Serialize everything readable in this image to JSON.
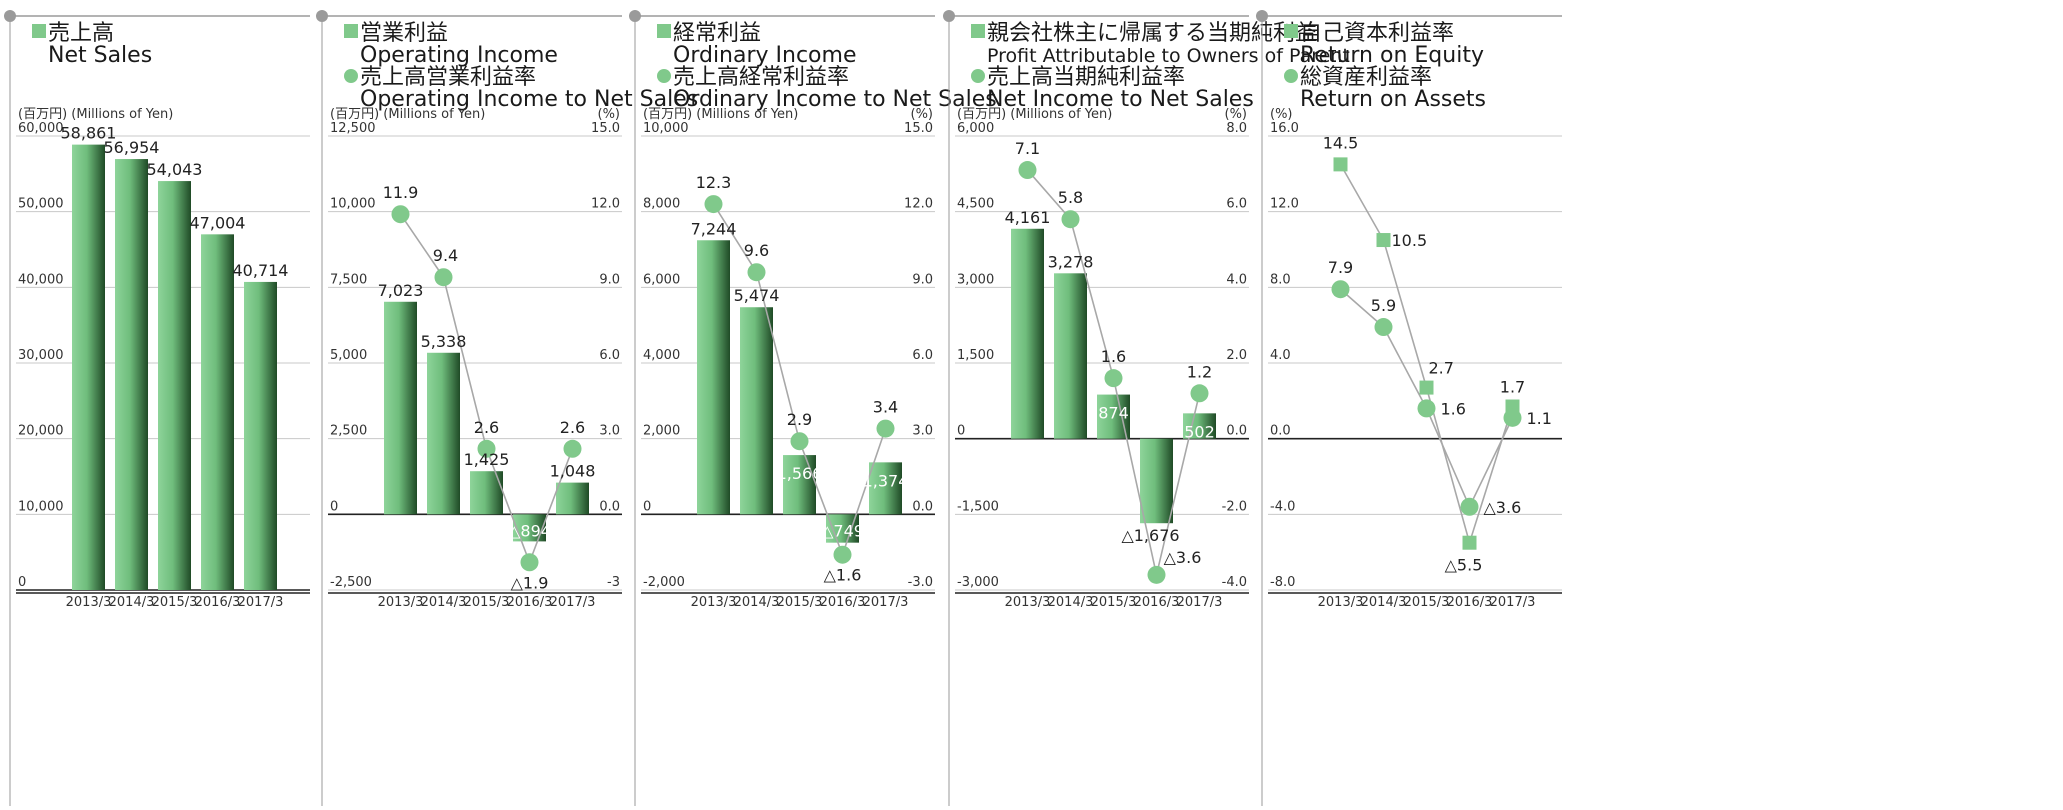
{
  "colors": {
    "bar_light": "#8ed49a",
    "bar_dark": "#1f4a26",
    "marker": "#80c98b",
    "line": "#a8a8a8",
    "grid": "#c8c8c8",
    "axis": "#222222"
  },
  "chart_data": [
    {
      "type": "bar",
      "title_lines": [
        "売上高",
        "Net Sales"
      ],
      "title_markers": [
        "square",
        ""
      ],
      "left_unit": "(百万円) (Millions of Yen)",
      "right_unit": "",
      "categories": [
        "2013/3",
        "2014/3",
        "2015/3",
        "2016/3",
        "2017/3"
      ],
      "left_axis": {
        "min": 0,
        "max": 60000,
        "ticks": [
          0,
          10000,
          20000,
          30000,
          40000,
          50000,
          60000
        ],
        "tick_labels": [
          "0",
          "10,000",
          "20,000",
          "30,000",
          "40,000",
          "50,000",
          "60,000"
        ]
      },
      "bars": {
        "values": [
          58861,
          56954,
          54043,
          47004,
          40714
        ],
        "labels": [
          "58,861",
          "56,954",
          "54,043",
          "47,004",
          "40,714"
        ]
      }
    },
    {
      "type": "bar+line",
      "title_lines": [
        "営業利益",
        "Operating Income",
        "売上高営業利益率",
        "Operating Income to Net Sales"
      ],
      "title_markers": [
        "square",
        "",
        "circle",
        ""
      ],
      "left_unit": "(百万円) (Millions of Yen)",
      "right_unit": "(%)",
      "categories": [
        "2013/3",
        "2014/3",
        "2015/3",
        "2016/3",
        "2017/3"
      ],
      "left_axis": {
        "min": -2500,
        "max": 12500,
        "ticks": [
          -2500,
          0,
          2500,
          5000,
          7500,
          10000,
          12500
        ],
        "tick_labels": [
          "-2,500",
          "0",
          "2,500",
          "5,000",
          "7,500",
          "10,000",
          "12,500"
        ]
      },
      "right_axis": {
        "min": -3,
        "max": 15,
        "ticks": [
          -3,
          0,
          3,
          6,
          9,
          12,
          15
        ],
        "tick_labels": [
          "-3",
          "0.0",
          "3.0",
          "6.0",
          "9.0",
          "12.0",
          "15.0"
        ]
      },
      "bars": {
        "values": [
          7023,
          5338,
          1425,
          -894,
          1048
        ],
        "labels": [
          "7,023",
          "5,338",
          "1,425",
          "△894",
          "1,048"
        ]
      },
      "lines": [
        {
          "marker": "circle",
          "values": [
            11.9,
            9.4,
            2.6,
            -1.9,
            2.6
          ],
          "labels": [
            "11.9",
            "9.4",
            "2.6",
            "△1.9",
            "2.6"
          ]
        }
      ]
    },
    {
      "type": "bar+line",
      "title_lines": [
        "経常利益",
        "Ordinary Income",
        "売上高経常利益率",
        "Ordinary Income to Net Sales"
      ],
      "title_markers": [
        "square",
        "",
        "circle",
        ""
      ],
      "left_unit": "(百万円) (Millions of Yen)",
      "right_unit": "(%)",
      "categories": [
        "2013/3",
        "2014/3",
        "2015/3",
        "2016/3",
        "2017/3"
      ],
      "left_axis": {
        "min": -2000,
        "max": 10000,
        "ticks": [
          -2000,
          0,
          2000,
          4000,
          6000,
          8000,
          10000
        ],
        "tick_labels": [
          "-2,000",
          "0",
          "2,000",
          "4,000",
          "6,000",
          "8,000",
          "10,000"
        ]
      },
      "right_axis": {
        "min": -3,
        "max": 15,
        "ticks": [
          -3,
          0,
          3,
          6,
          9,
          12,
          15
        ],
        "tick_labels": [
          "-3.0",
          "0.0",
          "3.0",
          "6.0",
          "9.0",
          "12.0",
          "15.0"
        ]
      },
      "bars": {
        "values": [
          7244,
          5474,
          1566,
          -749,
          1374
        ],
        "labels": [
          "7,244",
          "5,474",
          "1,566",
          "△749",
          "1,374"
        ]
      },
      "lines": [
        {
          "marker": "circle",
          "values": [
            12.3,
            9.6,
            2.9,
            -1.6,
            3.4
          ],
          "labels": [
            "12.3",
            "9.6",
            "2.9",
            "△1.6",
            "3.4"
          ]
        }
      ]
    },
    {
      "type": "bar+line",
      "title_lines": [
        "親会社株主に帰属する当期純利益",
        "Profit Attributable to Owners of Parent",
        "売上高当期純利益率",
        "Net Income to Net Sales"
      ],
      "title_markers": [
        "square",
        "",
        "circle",
        ""
      ],
      "left_unit": "(百万円) (Millions of Yen)",
      "right_unit": "(%)",
      "categories": [
        "2013/3",
        "2014/3",
        "2015/3",
        "2016/3",
        "2017/3"
      ],
      "left_axis": {
        "min": -3000,
        "max": 6000,
        "ticks": [
          -3000,
          -1500,
          0,
          1500,
          3000,
          4500,
          6000
        ],
        "tick_labels": [
          "-3,000",
          "-1,500",
          "0",
          "1,500",
          "3,000",
          "4,500",
          "6,000"
        ]
      },
      "right_axis": {
        "min": -4,
        "max": 8,
        "ticks": [
          -4,
          -2,
          0,
          2,
          4,
          6,
          8
        ],
        "tick_labels": [
          "-4.0",
          "-2.0",
          "0.0",
          "2.0",
          "4.0",
          "6.0",
          "8.0"
        ]
      },
      "bars": {
        "values": [
          4161,
          3278,
          874,
          -1676,
          502
        ],
        "labels": [
          "4,161",
          "3,278",
          "874",
          "△1,676",
          "502"
        ]
      },
      "lines": [
        {
          "marker": "circle",
          "values": [
            7.1,
            5.8,
            1.6,
            -3.6,
            1.2
          ],
          "labels": [
            "7.1",
            "5.8",
            "1.6",
            "△3.6",
            "1.2"
          ]
        }
      ]
    },
    {
      "type": "line",
      "title_lines": [
        "自己資本利益率",
        "Return on Equity",
        "総資産利益率",
        "Return on Assets"
      ],
      "title_markers": [
        "square",
        "",
        "circle",
        ""
      ],
      "left_unit": "(%)",
      "right_unit": "",
      "categories": [
        "2013/3",
        "2014/3",
        "2015/3",
        "2016/3",
        "2017/3"
      ],
      "left_axis": {
        "min": -8,
        "max": 16,
        "ticks": [
          -8,
          -4,
          0,
          4,
          8,
          12,
          16
        ],
        "tick_labels": [
          "-8.0",
          "-4.0",
          "0.0",
          "4.0",
          "8.0",
          "12.0",
          "16.0"
        ]
      },
      "lines": [
        {
          "marker": "square",
          "values": [
            14.5,
            10.5,
            2.7,
            -5.5,
            1.7
          ],
          "labels": [
            "14.5",
            "10.5",
            "2.7",
            "△5.5",
            "1.7"
          ]
        },
        {
          "marker": "circle",
          "values": [
            7.9,
            5.9,
            1.6,
            -3.6,
            1.1
          ],
          "labels": [
            "7.9",
            "5.9",
            "1.6",
            "△3.6",
            "1.1"
          ]
        }
      ]
    }
  ]
}
